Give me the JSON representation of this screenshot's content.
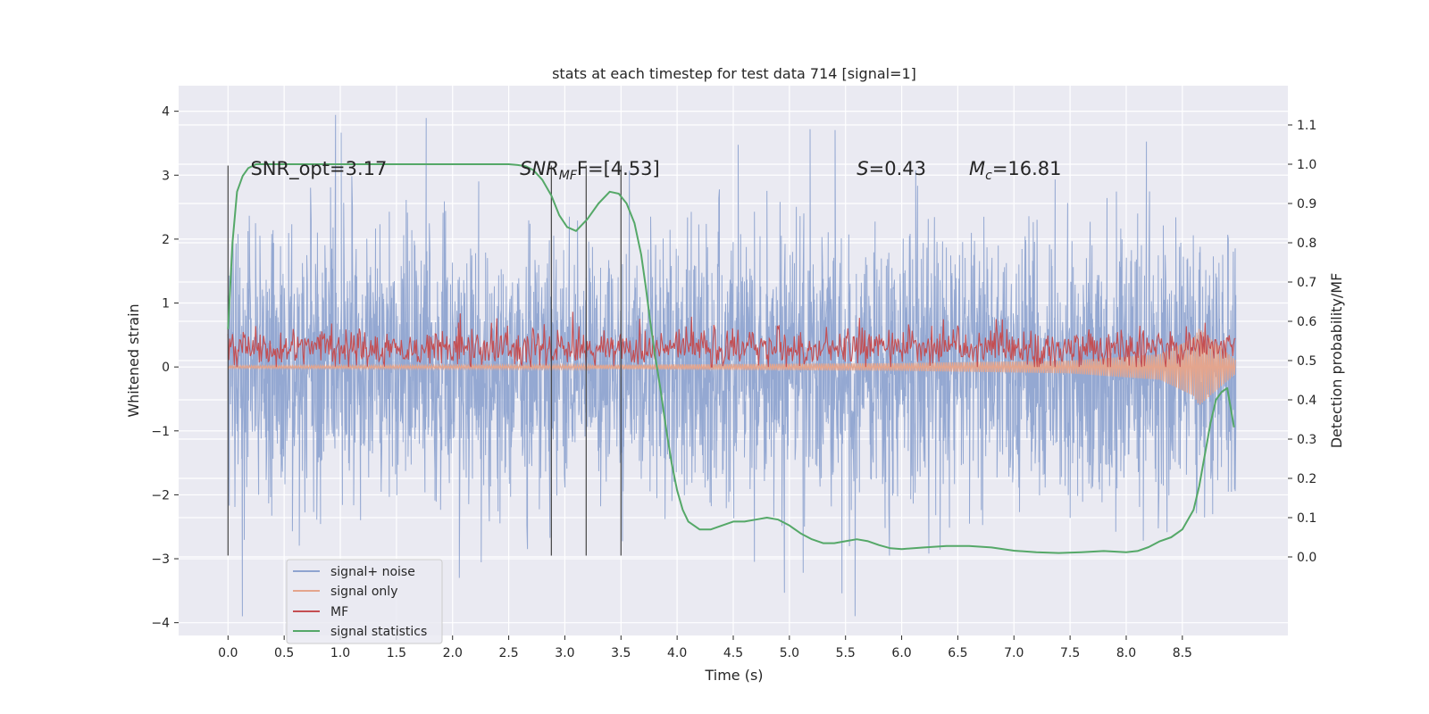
{
  "chart_data": {
    "type": "line",
    "title": "stats at each timestep for test data 714 [signal=1]",
    "xlabel": "Time (s)",
    "ylabel": "Whitened strain",
    "ylabel_right": "Detection probability/MF",
    "xlim": [
      -0.44,
      9.44
    ],
    "ylim": [
      -4.2,
      4.4
    ],
    "ylim_right": [
      -0.2,
      1.2
    ],
    "x_ticks": [
      "0.0",
      "0.5",
      "1.0",
      "1.5",
      "2.0",
      "2.5",
      "3.0",
      "3.5",
      "4.0",
      "4.5",
      "5.0",
      "5.5",
      "6.0",
      "6.5",
      "7.0",
      "7.5",
      "8.0",
      "8.5"
    ],
    "y_ticks": [
      "4",
      "3",
      "2",
      "1",
      "0",
      "−1",
      "−2",
      "−3",
      "−4"
    ],
    "y_right_ticks": [
      "1.1",
      "1.0",
      "0.9",
      "0.8",
      "0.7",
      "0.6",
      "0.5",
      "0.4",
      "0.3",
      "0.2",
      "0.1",
      "0.0"
    ],
    "grid": true,
    "legend_position": "lower-left",
    "annotations": [
      {
        "id": "snr-opt",
        "text": "SNR_opt=3.17",
        "x": 0.2,
        "y": 3.1
      },
      {
        "id": "snr-mf",
        "text": "SNR",
        "sub": "MF",
        "tail": "F=[4.53]",
        "x": 2.6,
        "y": 3.1
      },
      {
        "id": "s-value",
        "text": "S",
        "tail": "=0.43",
        "x": 5.6,
        "y": 3.1
      },
      {
        "id": "mc-value",
        "text": "M",
        "sub": "c",
        "tail": "=16.81",
        "x": 6.6,
        "y": 3.1
      }
    ],
    "vlines": {
      "x": [
        0.0,
        2.88,
        3.19,
        3.5
      ],
      "ymin": -2.95,
      "ymax": 3.15
    },
    "series": [
      {
        "name": "signal+ noise",
        "color": "#8fa4d0",
        "kind": "noise",
        "x_start": 0.0,
        "x_end": 8.98,
        "sigma": 1.0,
        "spread": 2.2,
        "seed": 714
      },
      {
        "name": "signal only",
        "color": "#e4a58d",
        "kind": "chirp",
        "x_start": 0.0,
        "x_end": 8.98,
        "chirp_x": [
          0.0,
          3.0,
          6.0,
          7.5,
          8.3,
          8.6,
          8.65,
          8.98
        ],
        "chirp_amp": [
          0.02,
          0.03,
          0.06,
          0.1,
          0.2,
          0.45,
          0.6,
          0.1
        ]
      },
      {
        "name": "MF",
        "color": "#c44e52",
        "kind": "mf",
        "x_start": 0.0,
        "x_end": 8.98,
        "baseline": 0.3,
        "spread": 0.28,
        "seed": 42
      },
      {
        "name": "signal statistics",
        "color": "#55a868",
        "kind": "line",
        "axis": "right",
        "x": [
          0.0,
          0.04,
          0.08,
          0.13,
          0.18,
          0.25,
          0.4,
          0.7,
          1.0,
          1.5,
          2.0,
          2.3,
          2.5,
          2.58,
          2.65,
          2.72,
          2.8,
          2.88,
          2.95,
          3.02,
          3.1,
          3.2,
          3.3,
          3.4,
          3.48,
          3.55,
          3.62,
          3.68,
          3.72,
          3.76,
          3.8,
          3.85,
          3.9,
          3.95,
          4.0,
          4.05,
          4.1,
          4.2,
          4.3,
          4.4,
          4.5,
          4.6,
          4.7,
          4.8,
          4.9,
          5.0,
          5.1,
          5.2,
          5.3,
          5.4,
          5.5,
          5.6,
          5.7,
          5.8,
          5.9,
          6.0,
          6.2,
          6.4,
          6.6,
          6.8,
          7.0,
          7.2,
          7.4,
          7.6,
          7.8,
          8.0,
          8.1,
          8.2,
          8.3,
          8.4,
          8.5,
          8.6,
          8.65,
          8.7,
          8.75,
          8.8,
          8.85,
          8.9,
          8.93,
          8.96
        ],
        "y": [
          0.58,
          0.8,
          0.93,
          0.97,
          0.99,
          1.0,
          1.0,
          1.0,
          1.0,
          1.0,
          1.0,
          1.0,
          1.0,
          0.998,
          0.995,
          0.985,
          0.96,
          0.92,
          0.87,
          0.84,
          0.83,
          0.86,
          0.9,
          0.93,
          0.925,
          0.9,
          0.85,
          0.77,
          0.69,
          0.6,
          0.52,
          0.43,
          0.33,
          0.24,
          0.17,
          0.12,
          0.09,
          0.07,
          0.07,
          0.08,
          0.09,
          0.09,
          0.095,
          0.1,
          0.095,
          0.08,
          0.06,
          0.045,
          0.035,
          0.035,
          0.04,
          0.045,
          0.04,
          0.03,
          0.022,
          0.02,
          0.024,
          0.028,
          0.028,
          0.024,
          0.016,
          0.012,
          0.01,
          0.012,
          0.015,
          0.012,
          0.015,
          0.025,
          0.04,
          0.05,
          0.07,
          0.12,
          0.18,
          0.26,
          0.34,
          0.4,
          0.42,
          0.43,
          0.38,
          0.33
        ]
      }
    ]
  }
}
